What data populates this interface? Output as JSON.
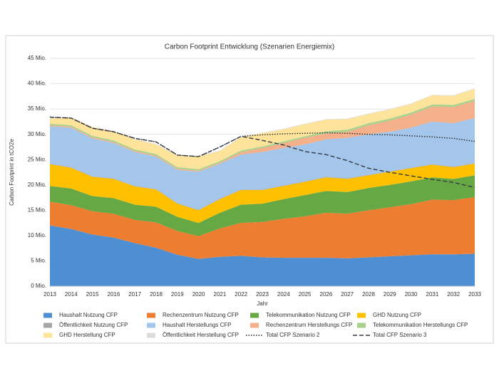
{
  "chart_data": {
    "type": "area",
    "stacked": true,
    "title": "Carbon Footprint Entwicklung (Szenarien Energiemix)",
    "x_label": "Jahr",
    "y_label": "Carbon Footprint in tCO2e",
    "categories": [
      "2013",
      "2014",
      "2015",
      "2016",
      "2017",
      "2018",
      "2019",
      "2020",
      "2021",
      "2022",
      "2023",
      "2024",
      "2025",
      "2026",
      "2027",
      "2028",
      "2029",
      "2030",
      "2031",
      "2032",
      "2033"
    ],
    "ylim": [
      0,
      45
    ],
    "yticks": [
      {
        "value": 0,
        "label": "0 Mio."
      },
      {
        "value": 5,
        "label": "5 Mio."
      },
      {
        "value": 10,
        "label": "10 Mio."
      },
      {
        "value": 15,
        "label": "15 Mio."
      },
      {
        "value": 20,
        "label": "20 Mio."
      },
      {
        "value": 25,
        "label": "25 Mio."
      },
      {
        "value": 30,
        "label": "30 Mio."
      },
      {
        "value": 35,
        "label": "35 Mio."
      },
      {
        "value": 40,
        "label": "40 Mio."
      },
      {
        "value": 45,
        "label": "45 Mio."
      }
    ],
    "grid": true,
    "series": [
      {
        "name": "Haushalt Nutzung CFP",
        "color": "#4e8fd4",
        "values": [
          12,
          11.3,
          10.2,
          9.6,
          8.5,
          7.6,
          6.2,
          5.4,
          5.8,
          6,
          5.7,
          5.6,
          5.6,
          5.6,
          5.5,
          5.7,
          5.9,
          6.1,
          6.3,
          6.3,
          6.4
        ]
      },
      {
        "name": "Rechenzentrum Nutzung CFP",
        "color": "#ed7d31",
        "values": [
          4.7,
          4.7,
          4.6,
          4.7,
          4.6,
          5.0,
          4.7,
          4.5,
          5.6,
          6.5,
          7.0,
          7.7,
          8.2,
          8.9,
          8.8,
          9.3,
          9.7,
          10.1,
          10.8,
          10.7,
          11.2
        ]
      },
      {
        "name": "Telekommunikation Nutzung CFP",
        "color": "#66a843",
        "values": [
          3.1,
          3.3,
          3.0,
          3.1,
          3.0,
          3.1,
          2.8,
          2.6,
          3.1,
          3.6,
          3.6,
          3.9,
          4.2,
          4.3,
          4.3,
          4.4,
          4.4,
          4.5,
          4.4,
          4.2,
          4.3
        ]
      },
      {
        "name": "GHD Nutzung CFP",
        "color": "#ffc000",
        "values": [
          4.3,
          4.1,
          3.8,
          3.8,
          3.6,
          3.4,
          2.6,
          2.5,
          2.7,
          2.9,
          2.7,
          2.6,
          2.6,
          2.7,
          2.6,
          2.5,
          2.6,
          2.6,
          2.5,
          2.3,
          2.3
        ]
      },
      {
        "name": "Öffentlichkeit Nutzung CFP",
        "color": "#a5a5a5",
        "values": [
          0.1,
          0.1,
          0.1,
          0.1,
          0.1,
          0.1,
          0.1,
          0.1,
          0.1,
          0.1,
          0.1,
          0.1,
          0.1,
          0.1,
          0.1,
          0.1,
          0.1,
          0.1,
          0.1,
          0.1,
          0.1
        ]
      },
      {
        "name": "Haushalt Herstellungs CFP",
        "color": "#a3c6ea",
        "values": [
          7.4,
          7.8,
          7.5,
          7.0,
          6.7,
          6.4,
          6.6,
          7.5,
          6.9,
          6.9,
          7.4,
          7.4,
          7.3,
          7.4,
          8.0,
          8.0,
          7.8,
          7.9,
          8.4,
          8.6,
          8.9
        ]
      },
      {
        "name": "Rechenzentrum Herstellungs CFP",
        "color": "#f4b08a",
        "values": [
          0.2,
          0.2,
          0.2,
          0.2,
          0.2,
          0.2,
          0.2,
          0.2,
          0.2,
          0.5,
          0.8,
          1.0,
          1.3,
          1.2,
          1.2,
          1.8,
          2.2,
          2.6,
          3.0,
          3.2,
          3.4
        ]
      },
      {
        "name": "Telekommunikation Herstellungs CFP",
        "color": "#a9d18e",
        "values": [
          0.3,
          0.3,
          0.3,
          0.3,
          0.3,
          0.3,
          0.3,
          0.3,
          0.3,
          0.3,
          0.3,
          0.3,
          0.3,
          0.4,
          0.4,
          0.4,
          0.4,
          0.4,
          0.4,
          0.4,
          0.4
        ]
      },
      {
        "name": "GHD Herstellung CFP",
        "color": "#fde49a",
        "values": [
          1.0,
          1.5,
          1.7,
          1.8,
          2.0,
          1.9,
          2.3,
          2.5,
          2.0,
          2.6,
          2.6,
          2.4,
          2.4,
          2.3,
          2.1,
          1.8,
          1.8,
          1.7,
          1.8,
          1.8,
          2.0
        ]
      },
      {
        "name": "Öffentlichkeit Herstellung CFP",
        "color": "#dbdbdb",
        "values": [
          0.1,
          0.1,
          0.1,
          0.1,
          0.1,
          0.1,
          0.1,
          0.1,
          0.1,
          0.1,
          0.1,
          0.1,
          0.1,
          0.1,
          0.1,
          0.1,
          0.1,
          0.1,
          0.1,
          0.1,
          0.1
        ]
      },
      {
        "name": "Total CFP Szenario 2",
        "color": "#222222",
        "kind": "line",
        "style": "dotted",
        "values": [
          33.4,
          33.2,
          31.2,
          30.5,
          29.2,
          28.5,
          25.9,
          25.6,
          27.5,
          29.6,
          29.9,
          30.1,
          30.2,
          30.3,
          30.2,
          30.0,
          29.9,
          29.7,
          29.5,
          29.2,
          28.6
        ]
      },
      {
        "name": "Total CFP Szenario 3",
        "color": "#333a44",
        "kind": "line",
        "style": "dashed",
        "values": [
          33.4,
          33.2,
          31.2,
          30.5,
          29.2,
          28.5,
          25.9,
          25.6,
          27.5,
          29.6,
          28.8,
          27.9,
          26.6,
          26.0,
          24.8,
          23.3,
          22.5,
          21.8,
          21.1,
          20.5,
          19.5
        ]
      }
    ]
  }
}
